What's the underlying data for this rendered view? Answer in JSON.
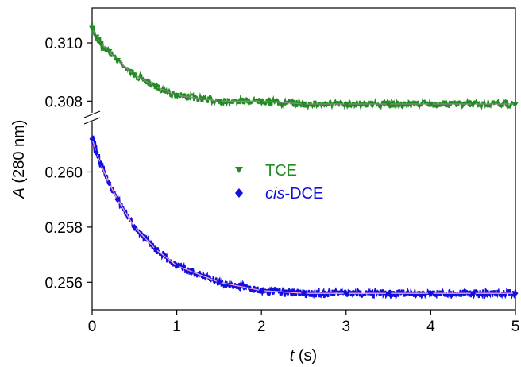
{
  "chart_data": {
    "type": "scatter",
    "title": "",
    "xlabel": {
      "italic": "t",
      "rest": " (s)"
    },
    "ylabel": {
      "italic": "A",
      "rest": " (280 nm)"
    },
    "xlim": [
      0,
      5
    ],
    "x_ticks": [
      "0",
      "1",
      "2",
      "3",
      "4",
      "5"
    ],
    "broken_y_axis": true,
    "upper_panel": {
      "ylim": [
        0.3076,
        0.3112
      ],
      "y_ticks": [
        "0.310",
        "0.308"
      ],
      "y_tick_values": [
        0.31,
        0.308
      ]
    },
    "lower_panel": {
      "ylim": [
        0.255,
        0.2618
      ],
      "y_ticks": [
        "0.260",
        "0.258",
        "0.256"
      ],
      "y_tick_values": [
        0.26,
        0.258,
        0.256
      ]
    },
    "grid": false,
    "legend_placement": "center",
    "series": [
      {
        "name": {
          "italic": "",
          "rest": "TCE"
        },
        "marker": "triangle-down",
        "color": "#228B22",
        "fit_color": "#888888",
        "panel": "upper",
        "x": [
          0.0,
          0.05,
          0.1,
          0.2,
          0.3,
          0.5,
          0.75,
          1.0,
          1.5,
          2.0,
          2.5,
          3.0,
          3.5,
          4.0,
          4.5,
          5.0
        ],
        "y": [
          0.3105,
          0.3102,
          0.31,
          0.3097,
          0.3094,
          0.3089,
          0.3085,
          0.3082,
          0.308,
          0.308,
          0.3079,
          0.3079,
          0.3079,
          0.3079,
          0.3079,
          0.3079
        ]
      },
      {
        "name": {
          "italic": "cis",
          "rest": "-DCE"
        },
        "marker": "diamond",
        "color": "#1010E0",
        "fit_color": "#FF99CC",
        "panel": "lower",
        "x": [
          0.0,
          0.05,
          0.1,
          0.2,
          0.3,
          0.5,
          0.75,
          1.0,
          1.5,
          2.0,
          2.5,
          3.0,
          3.5,
          4.0,
          4.5,
          5.0
        ],
        "y": [
          0.2612,
          0.2607,
          0.2603,
          0.2596,
          0.259,
          0.258,
          0.2572,
          0.2566,
          0.256,
          0.2557,
          0.2556,
          0.2556,
          0.2556,
          0.2556,
          0.2556,
          0.2556
        ]
      }
    ]
  }
}
